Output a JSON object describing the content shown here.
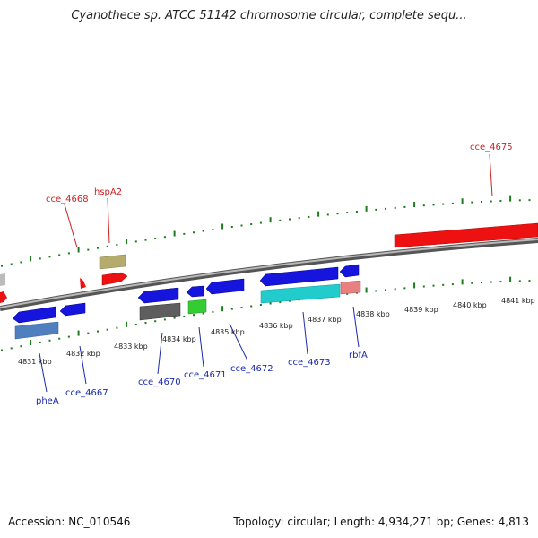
{
  "title": "Cyanothece sp. ATCC 51142 chromosome circular, complete sequ...",
  "footer": {
    "accession": "Accession: NC_010546",
    "summary": "Topology: circular; Length: 4,934,271 bp; Genes: 4,813"
  },
  "colors": {
    "backbone": "#8a8a8a",
    "tick": "#1e7a1e",
    "forward_label": "#cc2222",
    "reverse_label": "#1a2aaa"
  },
  "ticks": [
    "4831 kbp",
    "4832 kbp",
    "4833 kbp",
    "4834 kbp",
    "4835 kbp",
    "4836 kbp",
    "4837 kbp",
    "4838 kbp",
    "4839 kbp",
    "4840 kbp",
    "4841 kbp"
  ],
  "gene_labels": {
    "forward": [
      "cce_4668",
      "hspA2",
      "cce_4675"
    ],
    "reverse": [
      "pheA",
      "cce_4667",
      "cce_4670",
      "cce_4671",
      "cce_4672",
      "cce_4673",
      "rbfA"
    ]
  }
}
